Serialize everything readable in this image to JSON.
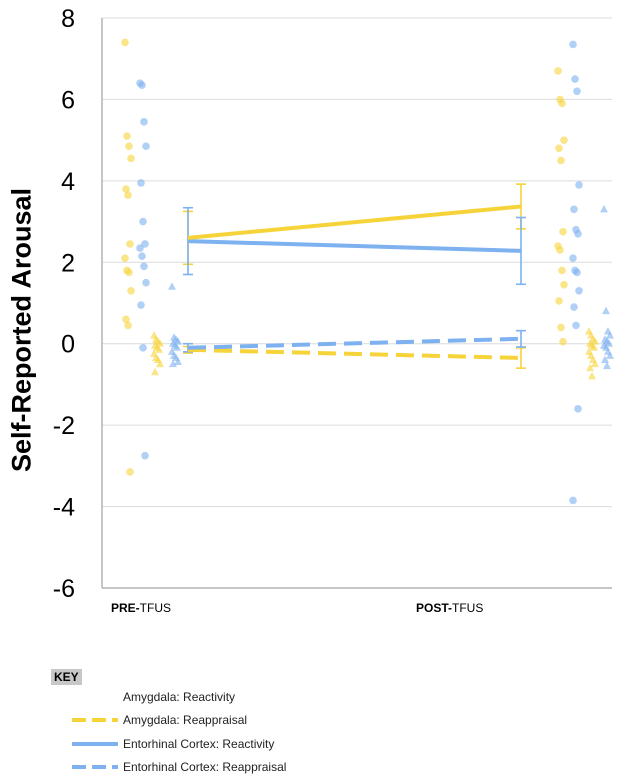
{
  "chart_data": {
    "type": "line",
    "title": "",
    "ylabel": "Self-Reported Arousal",
    "xlabel": "",
    "ylim": [
      -6,
      8
    ],
    "yticks": [
      -6,
      -4,
      -2,
      0,
      2,
      4,
      6,
      8
    ],
    "grid": true,
    "categories": [
      {
        "prefix": "PRE-",
        "suffix": "TFUS"
      },
      {
        "prefix": "POST-",
        "suffix": "TFUS"
      }
    ],
    "legend_title": "KEY",
    "legend_position": "bottom-left",
    "series": [
      {
        "name": "Amygdala: Reactivity",
        "color": "#f7d33a",
        "dash": "solid",
        "values": [
          2.6,
          3.37
        ],
        "err": [
          0.65,
          0.55
        ]
      },
      {
        "name": "Amygdala: Reappraisal",
        "color": "#f7d33a",
        "dash": "dashed",
        "values": [
          -0.15,
          -0.35
        ],
        "err": [
          0.08,
          0.25
        ]
      },
      {
        "name": "Entorhinal Cortex: Reactivity",
        "color": "#7db1f0",
        "dash": "solid",
        "values": [
          2.52,
          2.28
        ],
        "err": [
          0.82,
          0.82
        ]
      },
      {
        "name": "Entorhinal Cortex: Reappraisal",
        "color": "#7db1f0",
        "dash": "dashed",
        "values": [
          -0.1,
          0.12
        ],
        "err": [
          0.1,
          0.2
        ]
      }
    ],
    "individual_points": [
      {
        "series": 0,
        "condition": 0,
        "marker": "circle",
        "values": [
          7.4,
          5.1,
          4.85,
          4.55,
          3.8,
          3.65,
          2.45,
          2.1,
          1.8,
          1.75,
          1.3,
          0.6,
          0.45,
          -3.15
        ]
      },
      {
        "series": 2,
        "condition": 0,
        "marker": "circle",
        "values": [
          6.4,
          6.35,
          5.45,
          4.85,
          3.95,
          3.0,
          2.45,
          2.35,
          2.15,
          1.9,
          1.5,
          0.95,
          -0.1,
          -2.75
        ]
      },
      {
        "series": 1,
        "condition": 0,
        "marker": "triangle",
        "values": [
          0.2,
          0.1,
          0.05,
          0.0,
          -0.05,
          -0.1,
          -0.15,
          -0.25,
          -0.35,
          -0.4,
          -0.5,
          -0.7
        ]
      },
      {
        "series": 3,
        "condition": 0,
        "marker": "triangle",
        "values": [
          1.4,
          0.15,
          0.1,
          0.05,
          0.0,
          -0.05,
          -0.1,
          -0.2,
          -0.3,
          -0.35,
          -0.45,
          -0.5
        ]
      },
      {
        "series": 0,
        "condition": 1,
        "marker": "circle",
        "values": [
          6.7,
          6.0,
          5.9,
          5.0,
          4.8,
          4.5,
          2.75,
          2.4,
          2.3,
          1.8,
          1.45,
          1.05,
          0.4,
          0.05
        ]
      },
      {
        "series": 2,
        "condition": 1,
        "marker": "circle",
        "values": [
          7.35,
          6.5,
          6.2,
          3.9,
          3.3,
          2.8,
          2.7,
          2.1,
          1.8,
          1.75,
          1.3,
          0.9,
          0.45,
          -1.6,
          -3.85
        ]
      },
      {
        "series": 1,
        "condition": 1,
        "marker": "triangle",
        "values": [
          0.3,
          0.2,
          0.1,
          0.05,
          0.0,
          -0.05,
          -0.1,
          -0.2,
          -0.3,
          -0.4,
          -0.5,
          -0.6,
          -0.8
        ]
      },
      {
        "series": 3,
        "condition": 1,
        "marker": "triangle",
        "values": [
          3.3,
          0.8,
          0.3,
          0.2,
          0.1,
          0.05,
          0.0,
          -0.05,
          -0.1,
          -0.2,
          -0.3,
          -0.4,
          -0.55
        ]
      }
    ]
  }
}
